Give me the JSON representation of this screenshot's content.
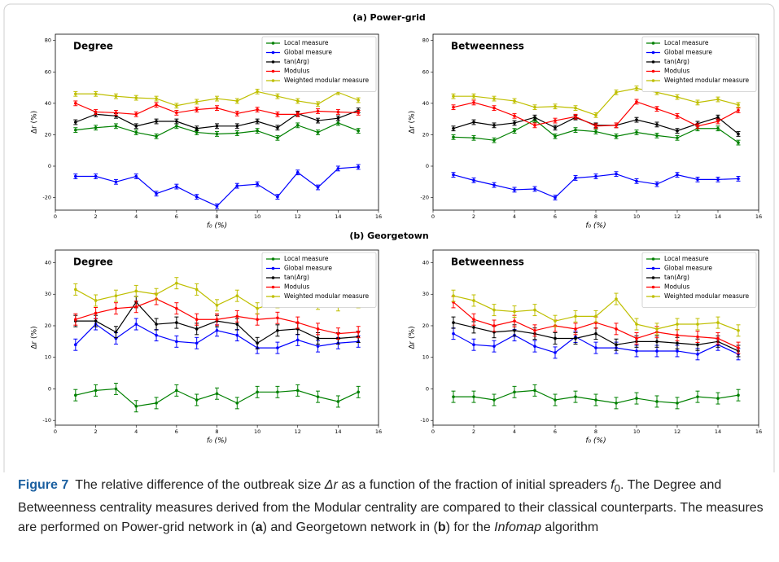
{
  "panel_titles": [
    "(a)  Power-grid",
    "(b)  Georgetown"
  ],
  "chart_data": [
    {
      "type": "line",
      "annotation": "Degree",
      "x_label": "f₀ (%)",
      "y_label": "Δr (%)",
      "x": [
        1,
        2,
        3,
        4,
        5,
        6,
        7,
        8,
        9,
        10,
        11,
        12,
        13,
        14,
        15
      ],
      "xlim": [
        0,
        16
      ],
      "xticks": [
        0,
        2,
        4,
        6,
        8,
        10,
        12,
        14,
        16
      ],
      "ylim": [
        -28,
        84
      ],
      "yticks": [
        -20,
        0,
        20,
        40,
        60,
        80
      ],
      "legend": "upper right",
      "series": [
        {
          "name": "Local measure",
          "color": "#008000",
          "error": 1.5,
          "values": [
            23,
            24.5,
            25.5,
            21.5,
            19,
            25.5,
            21.5,
            20.5,
            21,
            22.5,
            18,
            26,
            21.5,
            27.5,
            22.5
          ]
        },
        {
          "name": "Global measure",
          "color": "#0000ff",
          "error": 1.5,
          "values": [
            -6.5,
            -6.5,
            -10,
            -6.5,
            -17.5,
            -13,
            -19.5,
            -25.5,
            -12.5,
            -11.5,
            -19.5,
            -4,
            -13.5,
            -1.5,
            -0.5
          ]
        },
        {
          "name": "tan(Arg)",
          "color": "#000000",
          "error": 1.5,
          "values": [
            28,
            33,
            32,
            25.5,
            28.5,
            28.5,
            24,
            25.5,
            25.5,
            28.5,
            24.5,
            33.5,
            29,
            30.5,
            35.5
          ]
        },
        {
          "name": "Modulus",
          "color": "#ff0000",
          "error": 1.5,
          "values": [
            40,
            34.5,
            34,
            33,
            39,
            34,
            36,
            37,
            33.5,
            36,
            33,
            33,
            35,
            34.5,
            34
          ]
        },
        {
          "name": "Weighted modular measure",
          "color": "#bfbf00",
          "error": 1.5,
          "values": [
            46,
            46,
            44.5,
            43.5,
            43,
            38.5,
            41,
            43,
            41.5,
            47.5,
            44.5,
            41.5,
            39.5,
            47,
            42
          ]
        }
      ]
    },
    {
      "type": "line",
      "annotation": "Betweenness",
      "x_label": "f₀ (%)",
      "y_label": "Δr (%)",
      "x": [
        1,
        2,
        3,
        4,
        5,
        6,
        7,
        8,
        9,
        10,
        11,
        12,
        13,
        14,
        15
      ],
      "xlim": [
        0,
        16
      ],
      "xticks": [
        0,
        2,
        4,
        6,
        8,
        10,
        12,
        14,
        16
      ],
      "ylim": [
        -28,
        84
      ],
      "yticks": [
        -20,
        0,
        20,
        40,
        60,
        80
      ],
      "legend": "upper right",
      "series": [
        {
          "name": "Local measure",
          "color": "#008000",
          "error": 1.5,
          "values": [
            18.5,
            18,
            16.5,
            22.5,
            29.5,
            19,
            23,
            22,
            19,
            21.5,
            19.5,
            18,
            24,
            24,
            15
          ]
        },
        {
          "name": "Global measure",
          "color": "#0000ff",
          "error": 1.5,
          "values": [
            -5.5,
            -9,
            -12,
            -15,
            -14.5,
            -20,
            -7.5,
            -6.5,
            -5,
            -9.5,
            -11.5,
            -5.5,
            -8.5,
            -8.5,
            -8
          ]
        },
        {
          "name": "tan(Arg)",
          "color": "#000000",
          "error": 1.5,
          "values": [
            24,
            28,
            26,
            27.5,
            31,
            24.5,
            31,
            26,
            26,
            29.5,
            26.5,
            22.5,
            27,
            31,
            20.5
          ]
        },
        {
          "name": "Modulus",
          "color": "#ff0000",
          "error": 1.5,
          "values": [
            37.5,
            40.5,
            37,
            32,
            26,
            29,
            31.5,
            25.5,
            26,
            41,
            36.5,
            32,
            25.5,
            28.5,
            35.5
          ]
        },
        {
          "name": "Weighted modular measure",
          "color": "#bfbf00",
          "error": 1.5,
          "values": [
            44.5,
            44.5,
            43,
            41.5,
            37.5,
            38,
            37,
            32.5,
            47,
            49.5,
            47,
            44,
            40.5,
            42.5,
            39
          ]
        }
      ]
    },
    {
      "type": "line",
      "annotation": "Degree",
      "x_label": "f₀ (%)",
      "y_label": "Δr (%)",
      "x": [
        1,
        2,
        3,
        4,
        5,
        6,
        7,
        8,
        9,
        10,
        11,
        12,
        13,
        14,
        15
      ],
      "xlim": [
        0,
        16
      ],
      "xticks": [
        0,
        2,
        4,
        6,
        8,
        10,
        12,
        14,
        16
      ],
      "ylim": [
        -11.5,
        44
      ],
      "yticks": [
        -10,
        0,
        10,
        20,
        30,
        40
      ],
      "legend": "upper right",
      "series": [
        {
          "name": "Local measure",
          "color": "#008000",
          "error": 1.8,
          "values": [
            -2,
            -0.5,
            0,
            -5.5,
            -4.5,
            -0.5,
            -3.5,
            -1.5,
            -4.5,
            -1,
            -1,
            -0.5,
            -2.5,
            -4,
            -1
          ]
        },
        {
          "name": "Global measure",
          "color": "#0000ff",
          "error": 1.8,
          "values": [
            14,
            20.5,
            16,
            20.5,
            17,
            15,
            14.5,
            18.5,
            17,
            13,
            13,
            15.5,
            13.5,
            14.5,
            15
          ]
        },
        {
          "name": "tan(Arg)",
          "color": "#000000",
          "error": 1.8,
          "values": [
            21.5,
            21.5,
            18,
            27.5,
            20.5,
            21,
            19,
            21.5,
            20.5,
            14.5,
            18.5,
            19,
            16,
            16,
            16.5
          ]
        },
        {
          "name": "Modulus",
          "color": "#ff0000",
          "error": 1.8,
          "values": [
            22,
            24,
            25.5,
            26,
            28.5,
            25.5,
            22,
            22,
            23,
            22,
            22.5,
            21,
            19,
            17.5,
            18
          ]
        },
        {
          "name": "Weighted modular measure",
          "color": "#bfbf00",
          "error": 1.8,
          "values": [
            31.5,
            28,
            29.5,
            31,
            30,
            33.5,
            31.5,
            26.5,
            29.5,
            25.5,
            27.5,
            29,
            27,
            26.5,
            27.5
          ]
        }
      ]
    },
    {
      "type": "line",
      "annotation": "Betweenness",
      "x_label": "f₀ (%)",
      "y_label": "Δr (%)",
      "x": [
        1,
        2,
        3,
        4,
        5,
        6,
        7,
        8,
        9,
        10,
        11,
        12,
        13,
        14,
        15
      ],
      "xlim": [
        0,
        16
      ],
      "xticks": [
        0,
        2,
        4,
        6,
        8,
        10,
        12,
        14,
        16
      ],
      "ylim": [
        -11.5,
        44
      ],
      "yticks": [
        -10,
        0,
        10,
        20,
        30,
        40
      ],
      "legend": "upper right",
      "series": [
        {
          "name": "Local measure",
          "color": "#008000",
          "error": 1.8,
          "values": [
            -2.5,
            -2.5,
            -3.5,
            -1,
            -0.5,
            -3.5,
            -2.5,
            -3.5,
            -4.5,
            -3,
            -4,
            -4.5,
            -2.5,
            -3,
            -2
          ]
        },
        {
          "name": "Global measure",
          "color": "#0000ff",
          "error": 1.8,
          "values": [
            17.5,
            14,
            13.5,
            17,
            13.5,
            11.5,
            16.5,
            13,
            13,
            12,
            12,
            12,
            11,
            14,
            11
          ]
        },
        {
          "name": "tan(Arg)",
          "color": "#000000",
          "error": 1.8,
          "values": [
            21,
            19.5,
            18,
            18.5,
            17.5,
            16,
            16,
            17.5,
            14,
            15,
            15,
            14.5,
            14,
            15,
            12
          ]
        },
        {
          "name": "Modulus",
          "color": "#ff0000",
          "error": 1.8,
          "values": [
            27.5,
            22,
            20,
            21.5,
            18.5,
            20,
            19,
            21,
            19,
            16,
            18,
            17,
            16.5,
            16,
            13
          ]
        },
        {
          "name": "Weighted modular measure",
          "color": "#bfbf00",
          "error": 1.8,
          "values": [
            29.5,
            28,
            25,
            24.5,
            25,
            21.5,
            23,
            23,
            28.5,
            20.5,
            19,
            20.5,
            20.5,
            21,
            18.5
          ]
        }
      ]
    }
  ],
  "caption": {
    "label": "Figure 7",
    "parts": [
      "The relative difference of the outbreak size ",
      "Δr",
      " as a function of the fraction of initial spreaders ",
      "f",
      "0",
      ". The Degree and Betweenness centrality measures derived from the Modular centrality are compared to their classical counterparts. The measures are performed on Power-grid network in (",
      "a",
      ") and Georgetown network in (",
      "b",
      ") for the ",
      "Infomap",
      " algorithm"
    ]
  }
}
